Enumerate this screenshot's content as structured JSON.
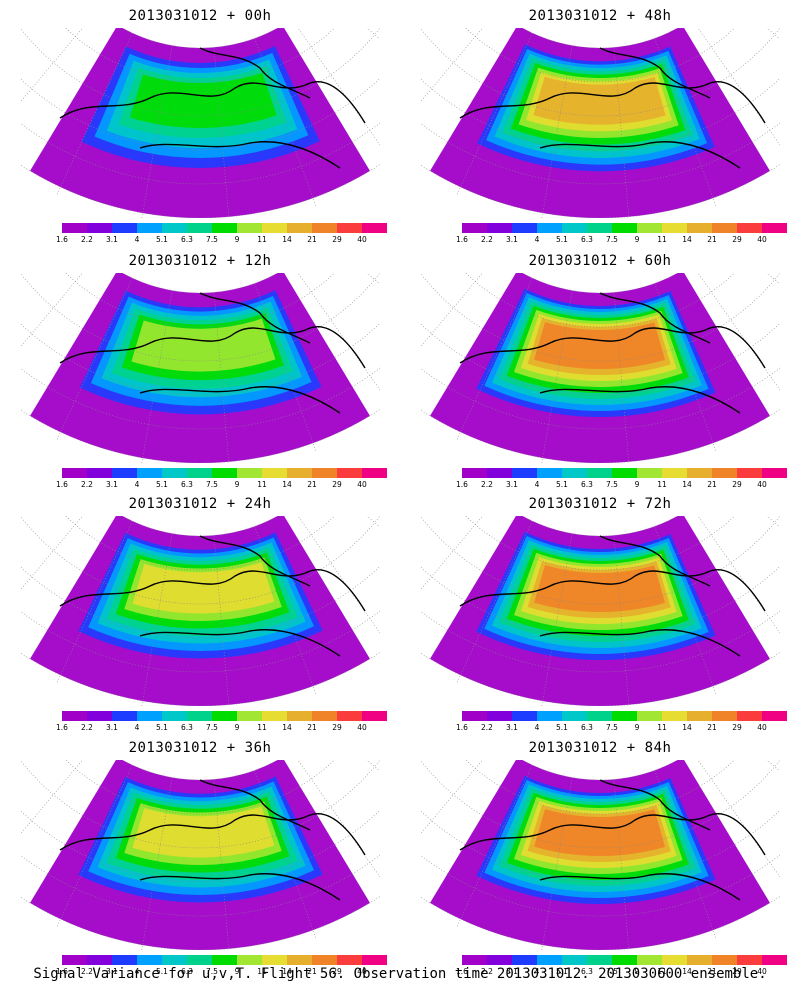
{
  "colorbar": {
    "colors": [
      "#a000c8",
      "#8200dc",
      "#1e3cff",
      "#00a0ff",
      "#00c8c8",
      "#00d28c",
      "#00dc00",
      "#a0e632",
      "#e6dc32",
      "#e6af2d",
      "#f08228",
      "#fa3c3c",
      "#f00082"
    ],
    "ticks": [
      "1.6",
      "2.2",
      "3.1",
      "4",
      "5.1",
      "6.3",
      "7.5",
      "9",
      "11",
      "14",
      "21",
      "29",
      "40"
    ]
  },
  "panels": [
    {
      "title": "2013031012 + 00h",
      "intensity": 0.3
    },
    {
      "title": "2013031012 + 48h",
      "intensity": 0.7
    },
    {
      "title": "2013031012 + 12h",
      "intensity": 0.45
    },
    {
      "title": "2013031012 + 60h",
      "intensity": 0.8
    },
    {
      "title": "2013031012 + 24h",
      "intensity": 0.55
    },
    {
      "title": "2013031012 + 72h",
      "intensity": 0.85
    },
    {
      "title": "2013031012 + 36h",
      "intensity": 0.6
    },
    {
      "title": "2013031012 + 84h",
      "intensity": 0.9
    }
  ],
  "footer": "Signal Variance for u,v,T. Flight 56. Observation time 2013031012. 2013030600 ensemble."
}
